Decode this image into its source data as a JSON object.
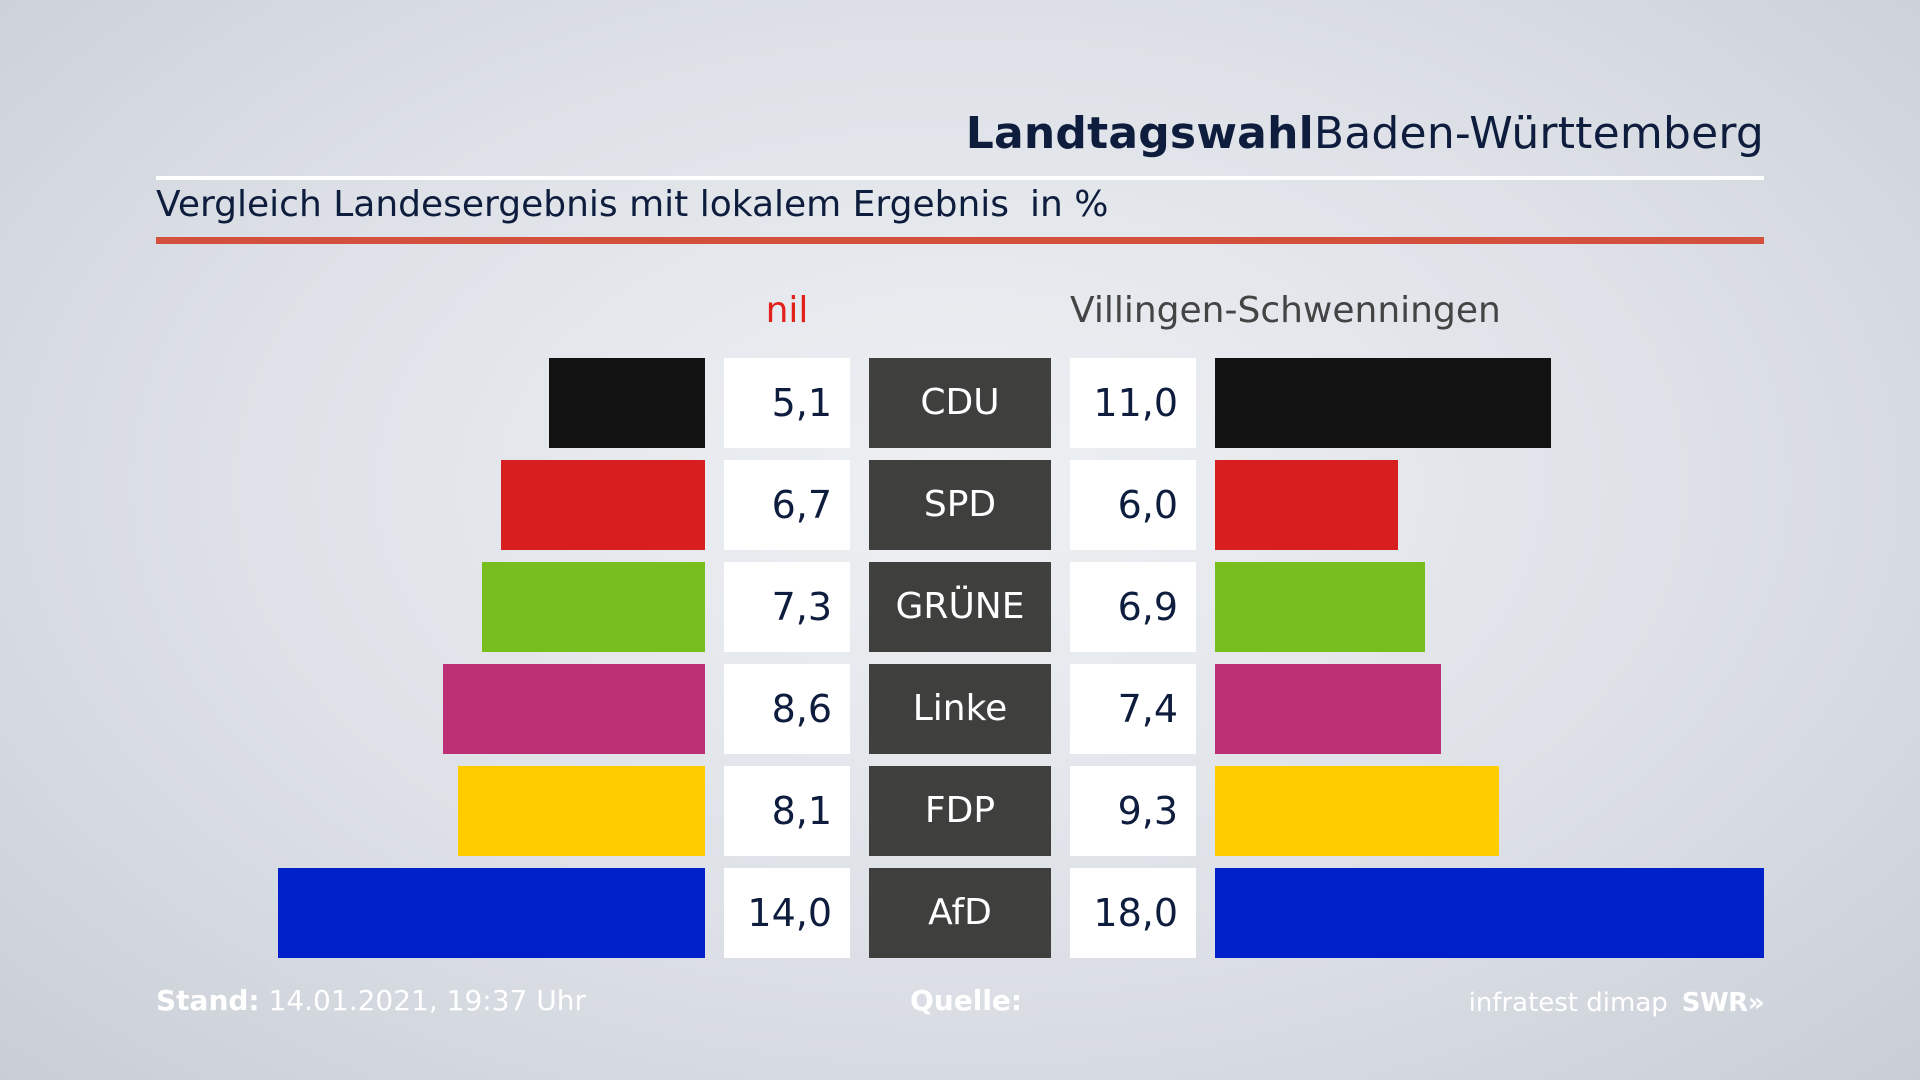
{
  "header": {
    "title_bold": "Landtagswahl",
    "title_regular": "Baden-Württemberg",
    "subtitle": "Vergleich Landesergebnis mit lokalem Ergebnis",
    "unit": "in %"
  },
  "columns": {
    "left_label": "nil",
    "right_label": "Villingen-Schwenningen"
  },
  "footer": {
    "stand_label": "Stand:",
    "stand_value": "14.01.2021, 19:37 Uhr",
    "source_label": "Quelle:",
    "source_name": "infratest dimap",
    "logo": "SWR»"
  },
  "chart_data": {
    "type": "bar",
    "title": "Vergleich Landesergebnis mit lokalem Ergebnis",
    "unit": "in %",
    "categories": [
      "CDU",
      "SPD",
      "GRÜNE",
      "Linke",
      "FDP",
      "AfD"
    ],
    "series": [
      {
        "name": "nil",
        "values": [
          5.1,
          6.7,
          7.3,
          8.6,
          8.1,
          14.0
        ],
        "labels": [
          "5,1",
          "6,7",
          "7,3",
          "8,6",
          "8,1",
          "14,0"
        ]
      },
      {
        "name": "Villingen-Schwenningen",
        "values": [
          11.0,
          6.0,
          6.9,
          7.4,
          9.3,
          18.0
        ],
        "labels": [
          "11,0",
          "6,0",
          "6,9",
          "7,4",
          "9,3",
          "18,0"
        ]
      }
    ],
    "colors": [
      "#121212",
      "#d81e1e",
      "#78be1e",
      "#bd3075",
      "#ffcc00",
      "#0021c9"
    ],
    "xlim": [
      0,
      18
    ]
  }
}
